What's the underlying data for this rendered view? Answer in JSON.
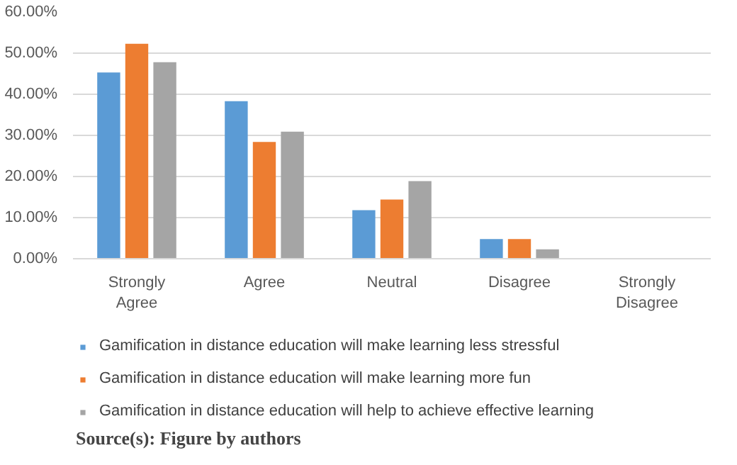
{
  "chart_data": {
    "type": "bar",
    "categories": [
      "Strongly Agree",
      "Agree",
      "Neutral",
      "Disagree",
      "Strongly Disagree"
    ],
    "series": [
      {
        "name": "Gamification in distance education will make learning less stressful",
        "color": "#5b9bd5",
        "values": [
          45.3,
          38.3,
          11.8,
          4.8,
          0
        ]
      },
      {
        "name": "Gamification in distance education will make learning more fun",
        "color": "#ed7d31",
        "values": [
          52.3,
          28.4,
          14.4,
          4.8,
          0
        ]
      },
      {
        "name": "Gamification in distance education will help to achieve effective learning",
        "color": "#a5a5a5",
        "values": [
          47.8,
          30.9,
          18.9,
          2.3,
          0
        ]
      }
    ],
    "ylim": [
      0,
      60
    ],
    "yticks": [
      {
        "value": 0,
        "label": "0.00%"
      },
      {
        "value": 10,
        "label": "10.00%"
      },
      {
        "value": 20,
        "label": "20.00%"
      },
      {
        "value": 30,
        "label": "30.00%"
      },
      {
        "value": 40,
        "label": "40.00%"
      },
      {
        "value": 50,
        "label": "50.00%"
      },
      {
        "value": 60,
        "label": "60.00%"
      }
    ],
    "grid": "y",
    "legend": "bottom",
    "annotations": [
      "Source(s): Figure by authors"
    ]
  }
}
